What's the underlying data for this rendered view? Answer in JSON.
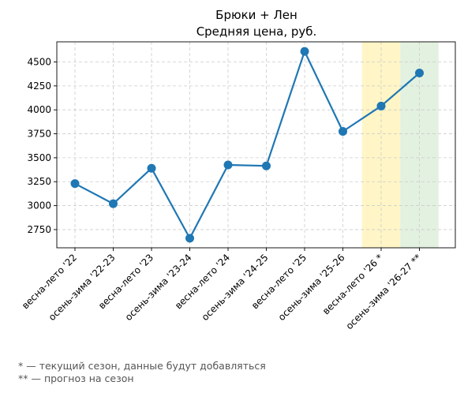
{
  "chart_data": {
    "type": "line",
    "title": "Брюки + Лен",
    "subtitle": "Средняя цена, руб.",
    "categories": [
      "весна-лето '22",
      "осень-зима '22-23",
      "весна-лето '23",
      "осень-зима '23-24",
      "весна-лето '24",
      "осень-зима '24-25",
      "весна-лето '25",
      "осень-зима '25-26",
      "весна-лето '26 *",
      "осень-зима '26-27 **"
    ],
    "series": [
      {
        "values": [
          3230,
          3020,
          3390,
          2660,
          3425,
          3415,
          4610,
          3775,
          4040,
          4385
        ],
        "color": "#1f77b4"
      }
    ],
    "ylim": [
      2560,
      4710
    ],
    "yticks": [
      2750,
      3000,
      3250,
      3500,
      3750,
      4000,
      4250,
      4500
    ],
    "grid": true,
    "highlight_bands": [
      {
        "category": "весна-лето '26 *",
        "color": "#fff2b3",
        "meaning": "current season"
      },
      {
        "category": "осень-зима '26-27 **",
        "color": "#d9ecd5",
        "meaning": "forecast"
      }
    ]
  },
  "notes": {
    "current_season": "* — текущий сезон, данные будут добавляться",
    "forecast": "** — прогноз на сезон"
  }
}
